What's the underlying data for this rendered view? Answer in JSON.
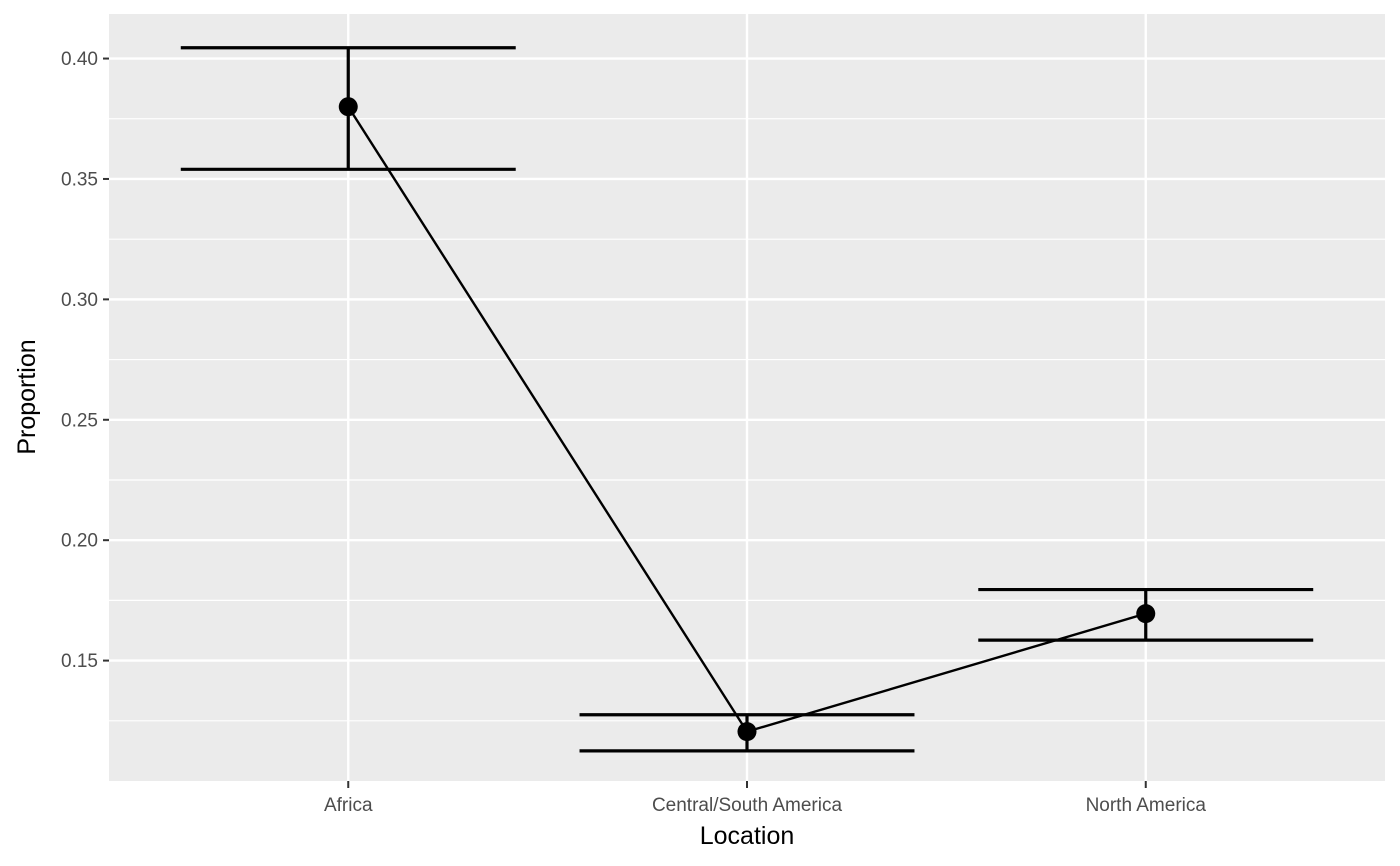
{
  "chart_data": {
    "type": "scatter",
    "title": "",
    "xlabel": "Location",
    "ylabel": "Proportion",
    "categories": [
      "Africa",
      "Central/South America",
      "North America"
    ],
    "values": [
      0.38,
      0.1205,
      0.1695
    ],
    "error_bars": {
      "lower": [
        0.354,
        0.1125,
        0.1585
      ],
      "upper": [
        0.4045,
        0.1275,
        0.1795
      ]
    },
    "connected": true,
    "ylim": [
      0.1,
      0.4185
    ],
    "y_ticks": [
      0.15,
      0.2,
      0.25,
      0.3,
      0.35,
      0.4
    ],
    "y_tick_labels": [
      "0.15",
      "0.20",
      "0.25",
      "0.30",
      "0.35",
      "0.40"
    ],
    "grid": true,
    "legend": "none",
    "colors": {
      "panel": "#ebebeb",
      "grid": "#ffffff",
      "mark": "#000000",
      "tick_text": "#4d4d4d"
    }
  }
}
